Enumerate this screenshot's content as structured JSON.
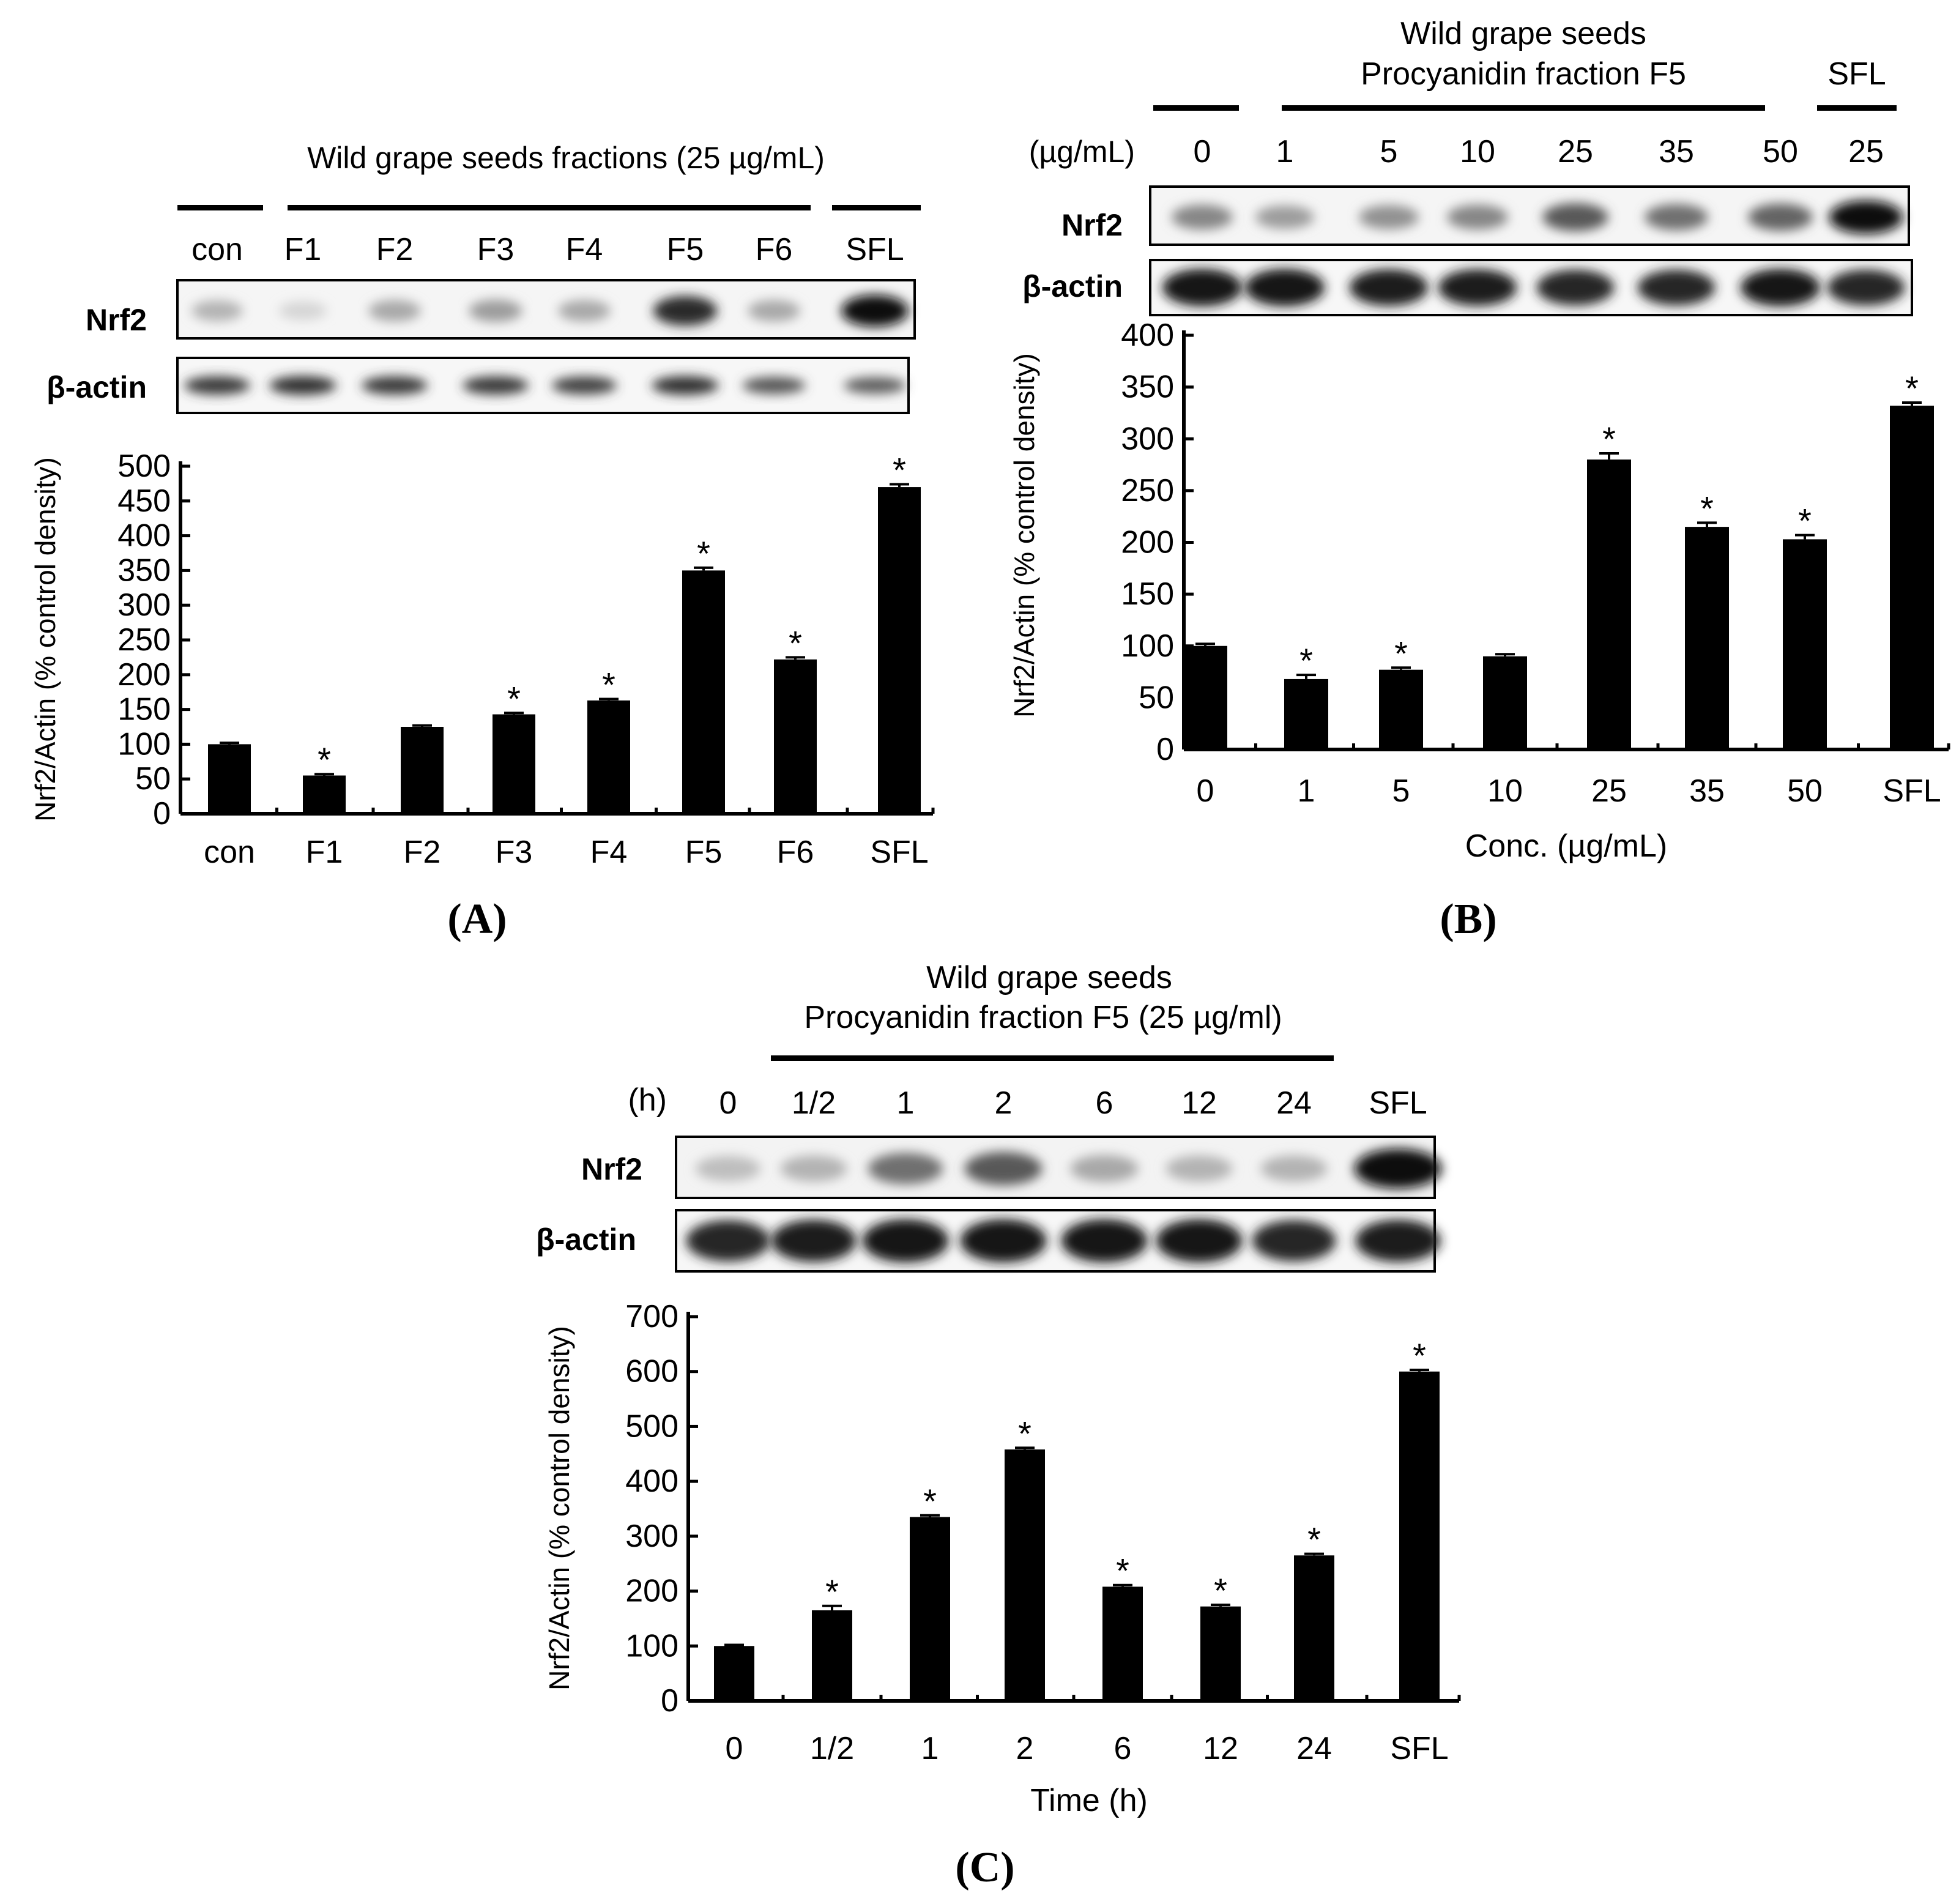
{
  "figure": {
    "panels": [
      {
        "letter": "A",
        "letter_text": "(A)",
        "blot": {
          "header_lines": [
            "Wild grape seeds fractions (25 µg/mL)"
          ],
          "unit_label": "",
          "lane_labels": [
            "con",
            "F1",
            "F2",
            "F3",
            "F4",
            "F5",
            "F6",
            "SFL"
          ],
          "row_labels": [
            "Nrf2",
            "β-actin"
          ],
          "nrf2_intensity": [
            0.25,
            0.1,
            0.3,
            0.35,
            0.3,
            0.85,
            0.3,
            1.0
          ],
          "actin_intensity": [
            0.75,
            0.8,
            0.75,
            0.75,
            0.7,
            0.8,
            0.6,
            0.55
          ]
        }
      },
      {
        "letter": "B",
        "letter_text": "(B)",
        "blot": {
          "header_lines": [
            "Wild grape seeds",
            "Procyanidin fraction F5"
          ],
          "header_right": "SFL",
          "unit_label": "(µg/mL)",
          "lane_labels": [
            "0",
            "1",
            "5",
            "10",
            "25",
            "35",
            "50",
            "25"
          ],
          "row_labels": [
            "Nrf2",
            "β-actin"
          ],
          "nrf2_intensity": [
            0.45,
            0.35,
            0.4,
            0.45,
            0.65,
            0.55,
            0.6,
            1.0
          ],
          "actin_intensity": [
            0.95,
            0.95,
            0.9,
            0.9,
            0.85,
            0.85,
            0.95,
            0.85
          ]
        }
      },
      {
        "letter": "C",
        "letter_text": "(C)",
        "blot": {
          "header_lines": [
            "Wild grape seeds",
            "Procyanidin fraction F5 (25 µg/ml)"
          ],
          "unit_label": "(h)",
          "lane_labels": [
            "0",
            "1/2",
            "1",
            "2",
            "6",
            "12",
            "24",
            "SFL"
          ],
          "row_labels": [
            "Nrf2",
            "β-actin"
          ],
          "nrf2_intensity": [
            0.2,
            0.25,
            0.55,
            0.65,
            0.3,
            0.25,
            0.25,
            1.0
          ],
          "actin_intensity": [
            0.85,
            0.9,
            0.95,
            0.95,
            0.95,
            0.95,
            0.85,
            0.9
          ]
        }
      }
    ]
  },
  "chart_data": [
    {
      "panel": "A",
      "type": "bar",
      "categories": [
        "con",
        "F1",
        "F2",
        "F3",
        "F4",
        "F5",
        "F6",
        "SFL"
      ],
      "values": [
        100,
        55,
        125,
        143,
        163,
        350,
        222,
        470
      ],
      "errors": [
        2,
        2,
        2,
        2,
        2,
        4,
        3,
        4
      ],
      "significant": [
        false,
        true,
        false,
        true,
        true,
        true,
        true,
        true
      ],
      "significance_marker": "*",
      "ylabel": "Nrf2/Actin (% control density)",
      "xlabel": "",
      "ylim": [
        0,
        500
      ],
      "yticks": [
        0,
        50,
        100,
        150,
        200,
        250,
        300,
        350,
        400,
        450,
        500
      ],
      "title": ""
    },
    {
      "panel": "B",
      "type": "bar",
      "categories": [
        "0",
        "1",
        "5",
        "10",
        "25",
        "35",
        "50",
        "SFL"
      ],
      "values": [
        100,
        68,
        77,
        90,
        280,
        215,
        203,
        332
      ],
      "errors": [
        2,
        4,
        2,
        2,
        6,
        4,
        4,
        3
      ],
      "significant": [
        false,
        true,
        true,
        false,
        true,
        true,
        true,
        true
      ],
      "significance_marker": "*",
      "ylabel": "Nrf2/Actin (% control density)",
      "xlabel": "Conc. (µg/mL)",
      "ylim": [
        0,
        400
      ],
      "yticks": [
        0,
        50,
        100,
        150,
        200,
        250,
        300,
        350,
        400
      ],
      "title": ""
    },
    {
      "panel": "C",
      "type": "bar",
      "categories": [
        "0",
        "1/2",
        "1",
        "2",
        "6",
        "12",
        "24",
        "SFL"
      ],
      "values": [
        100,
        165,
        335,
        458,
        208,
        172,
        265,
        600
      ],
      "errors": [
        2,
        8,
        3,
        3,
        3,
        3,
        3,
        3
      ],
      "significant": [
        false,
        true,
        true,
        true,
        true,
        true,
        true,
        true
      ],
      "significance_marker": "*",
      "ylabel": "Nrf2/Actin (% control density)",
      "xlabel": "Time (h)",
      "ylim": [
        0,
        700
      ],
      "yticks": [
        0,
        100,
        200,
        300,
        400,
        500,
        600,
        700
      ],
      "title": ""
    }
  ]
}
